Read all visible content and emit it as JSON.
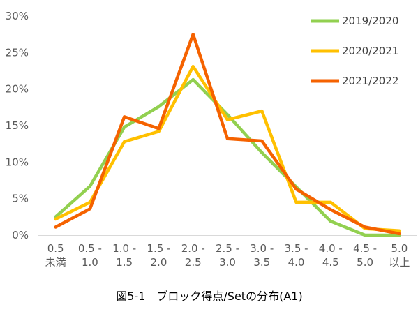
{
  "chart_data": {
    "type": "line",
    "title": "図5-1　ブロック得点/Setの分布(A1)",
    "xlabel": "",
    "ylabel": "",
    "categories": [
      [
        "0.5",
        "未満"
      ],
      [
        "0.5 -",
        "1.0"
      ],
      [
        "1.0 -",
        "1.5"
      ],
      [
        "1.5 -",
        "2.0"
      ],
      [
        "2.0 -",
        "2.5"
      ],
      [
        "2.5 -",
        "3.0"
      ],
      [
        "3.0 -",
        "3.5"
      ],
      [
        "3.5 -",
        "4.0"
      ],
      [
        "4.0 -",
        "4.5"
      ],
      [
        "4.5 -",
        "5.0"
      ],
      [
        "5.0",
        "以上"
      ]
    ],
    "ylim": [
      0,
      30
    ],
    "yticks": [
      "0%",
      "5%",
      "10%",
      "15%",
      "20%",
      "25%",
      "30%"
    ],
    "grid": false,
    "legend_position": "top-right",
    "series": [
      {
        "name": "2019/2020",
        "color": "#92D050",
        "values": [
          2.5,
          6.7,
          14.8,
          17.6,
          21.3,
          16.5,
          11.3,
          6.6,
          1.9,
          0.0,
          0.0
        ]
      },
      {
        "name": "2020/2021",
        "color": "#FFC000",
        "values": [
          2.2,
          4.5,
          12.8,
          14.2,
          23.1,
          15.8,
          17.0,
          4.5,
          4.5,
          0.9,
          0.6
        ]
      },
      {
        "name": "2021/2022",
        "color": "#F56200",
        "values": [
          1.1,
          3.6,
          16.2,
          14.6,
          27.5,
          13.2,
          12.9,
          6.3,
          3.5,
          1.1,
          0.2
        ]
      }
    ]
  }
}
